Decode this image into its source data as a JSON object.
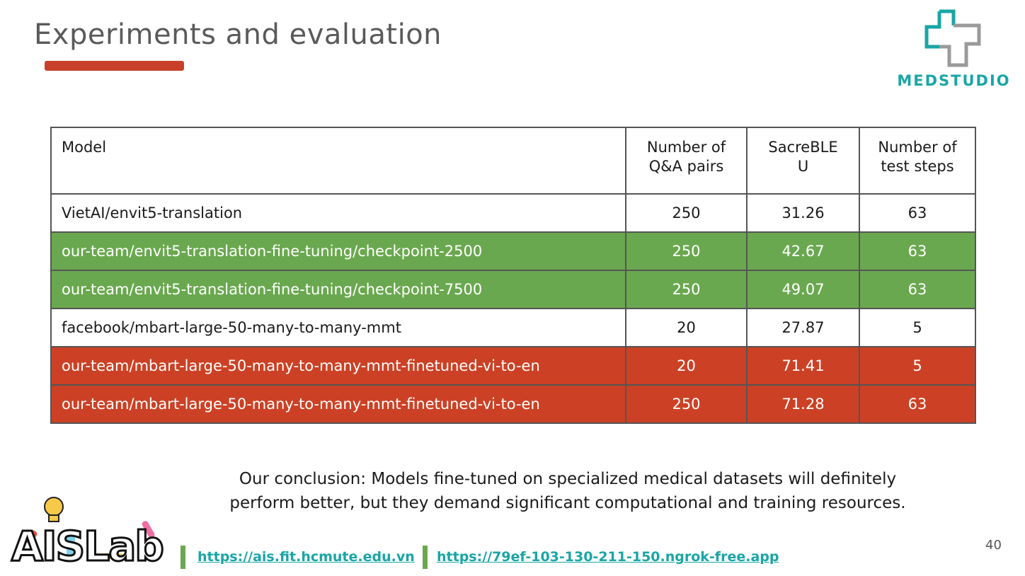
{
  "slide": {
    "title": "Experiments and evaluation",
    "page_number": "40",
    "conclusion_line1": "Our conclusion: Models fine-tuned on specialized medical datasets will definitely",
    "conclusion_line2": "perform better, but they demand significant computational and training resources."
  },
  "logos": {
    "medstudio": "MEDSTUDIO",
    "aislab": "AISLab"
  },
  "links": [
    "https://ais.fit.hcmute.edu.vn",
    "https://79ef-103-130-211-150.ngrok-free.app"
  ],
  "colors": {
    "accent_red": "#cc4125",
    "accent_green": "#6aa84f",
    "brand_teal": "#1aa5a6"
  },
  "table": {
    "headers": {
      "model": "Model",
      "pairs_l1": "Number of",
      "pairs_l2": "Q&A pairs",
      "bleu_l1": "SacreBLE",
      "bleu_l2": "U",
      "steps_l1": "Number of",
      "steps_l2": "test steps"
    },
    "rows": [
      {
        "model": "VietAI/envit5-translation",
        "pairs": "250",
        "bleu": "31.26",
        "steps": "63",
        "highlight": "none"
      },
      {
        "model": "our-team/envit5-translation-fine-tuning/checkpoint-2500",
        "pairs": "250",
        "bleu": "42.67",
        "steps": "63",
        "highlight": "green"
      },
      {
        "model": "our-team/envit5-translation-fine-tuning/checkpoint-7500",
        "pairs": "250",
        "bleu": "49.07",
        "steps": "63",
        "highlight": "green"
      },
      {
        "model": "facebook/mbart-large-50-many-to-many-mmt",
        "pairs": "20",
        "bleu": "27.87",
        "steps": "5",
        "highlight": "none"
      },
      {
        "model": "our-team/mbart-large-50-many-to-many-mmt-finetuned-vi-to-en",
        "pairs": "20",
        "bleu": "71.41",
        "steps": "5",
        "highlight": "red"
      },
      {
        "model": "our-team/mbart-large-50-many-to-many-mmt-finetuned-vi-to-en",
        "pairs": "250",
        "bleu": "71.28",
        "steps": "63",
        "highlight": "red"
      }
    ]
  }
}
